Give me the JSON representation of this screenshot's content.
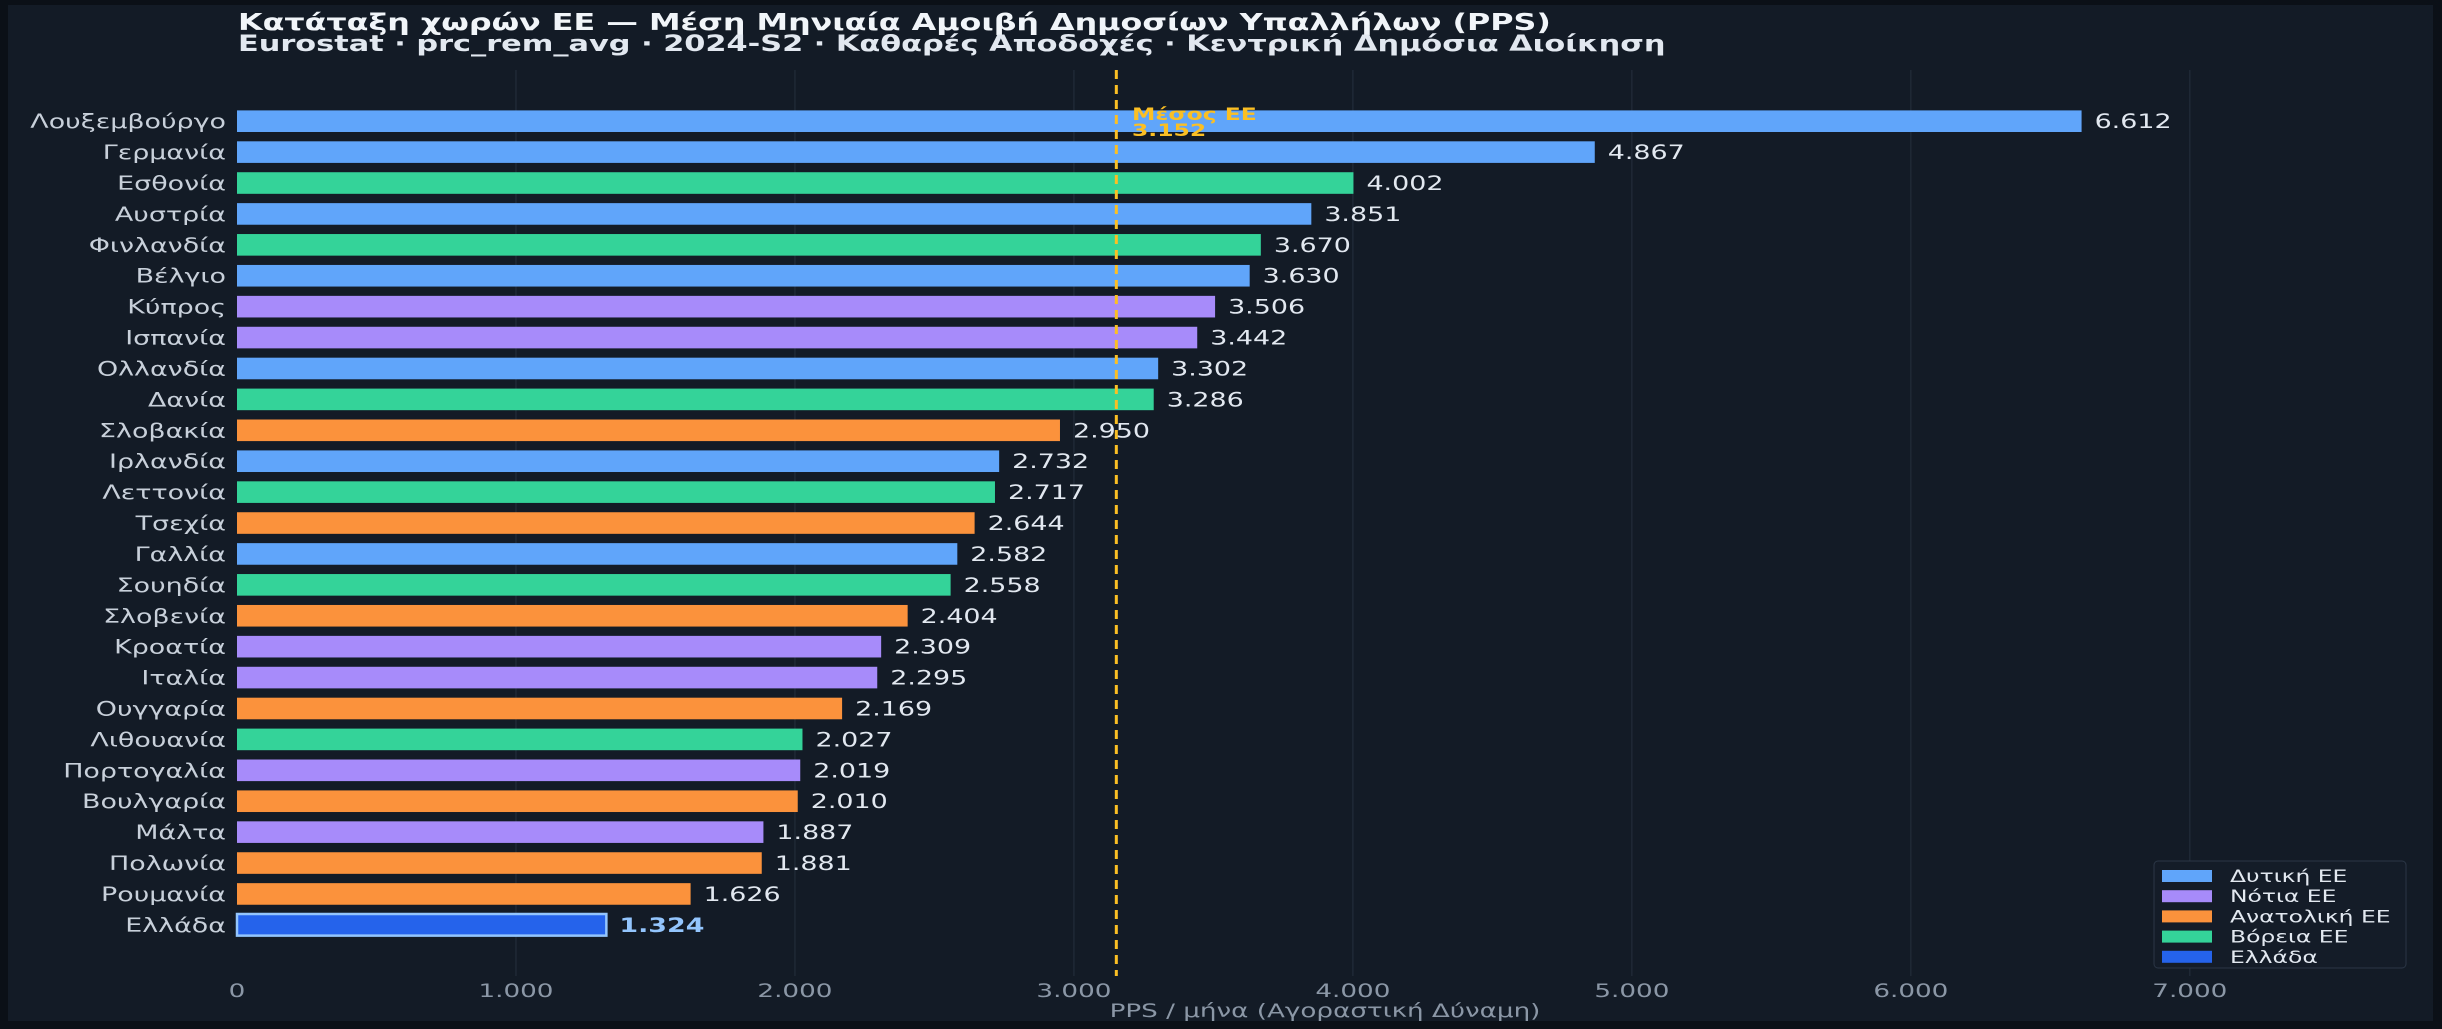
{
  "colors": {
    "page_border": "#0b1017",
    "figure_bg": "#131b26",
    "grid": "#222c3a",
    "legend_bg": "#141c28",
    "legend_edge": "#2b3646"
  },
  "chart_data": {
    "type": "bar",
    "orientation": "horizontal",
    "title": "Κατάταξη χωρών ΕΕ — Μέση Μηνιαία Αμοιβή Δημοσίων Υπαλλήλων (PPS)",
    "subtitle": "Eurostat · prc_rem_avg · 2024-S2 · Καθαρές Αποδοχές · Κεντρική Δημόσια Διοίκηση",
    "xlabel": "PPS / μήνα  (Αγοραστική Δύναμη)",
    "xlim": [
      0,
      7800
    ],
    "grid": "vertical",
    "xticks": [
      {
        "value": 0,
        "label": "0"
      },
      {
        "value": 1000,
        "label": "1.000"
      },
      {
        "value": 2000,
        "label": "2.000"
      },
      {
        "value": 3000,
        "label": "3.000"
      },
      {
        "value": 4000,
        "label": "4.000"
      },
      {
        "value": 5000,
        "label": "5.000"
      },
      {
        "value": 6000,
        "label": "6.000"
      },
      {
        "value": 7000,
        "label": "7.000"
      }
    ],
    "legend": {
      "placement": "lower-right",
      "entries": [
        {
          "name": "Δυτική ΕΕ",
          "color": "#60a5fa"
        },
        {
          "name": "Νότια ΕΕ",
          "color": "#a78bfa"
        },
        {
          "name": "Ανατολική ΕΕ",
          "color": "#fb923c"
        },
        {
          "name": "Βόρεια ΕΕ",
          "color": "#34d399"
        },
        {
          "name": "Ελλάδα",
          "color": "#2563eb"
        }
      ]
    },
    "reference_line": {
      "value": 3152,
      "label": "Μέσος ΕΕ",
      "value_label": "3.152",
      "color": "#fbbf24",
      "style": "dashed"
    },
    "bars": [
      {
        "label": "Λουξεμβούργο",
        "value": 6612,
        "value_label": "6.612",
        "series": 0
      },
      {
        "label": "Γερμανία",
        "value": 4867,
        "value_label": "4.867",
        "series": 0
      },
      {
        "label": "Εσθονία",
        "value": 4002,
        "value_label": "4.002",
        "series": 3
      },
      {
        "label": "Αυστρία",
        "value": 3851,
        "value_label": "3.851",
        "series": 0
      },
      {
        "label": "Φινλανδία",
        "value": 3670,
        "value_label": "3.670",
        "series": 3
      },
      {
        "label": "Βέλγιο",
        "value": 3630,
        "value_label": "3.630",
        "series": 0
      },
      {
        "label": "Κύπρος",
        "value": 3506,
        "value_label": "3.506",
        "series": 1
      },
      {
        "label": "Ισπανία",
        "value": 3442,
        "value_label": "3.442",
        "series": 1
      },
      {
        "label": "Ολλανδία",
        "value": 3302,
        "value_label": "3.302",
        "series": 0
      },
      {
        "label": "Δανία",
        "value": 3286,
        "value_label": "3.286",
        "series": 3
      },
      {
        "label": "Σλοβακία",
        "value": 2950,
        "value_label": "2.950",
        "series": 2
      },
      {
        "label": "Ιρλανδία",
        "value": 2732,
        "value_label": "2.732",
        "series": 0
      },
      {
        "label": "Λεττονία",
        "value": 2717,
        "value_label": "2.717",
        "series": 3
      },
      {
        "label": "Τσεχία",
        "value": 2644,
        "value_label": "2.644",
        "series": 2
      },
      {
        "label": "Γαλλία",
        "value": 2582,
        "value_label": "2.582",
        "series": 0
      },
      {
        "label": "Σουηδία",
        "value": 2558,
        "value_label": "2.558",
        "series": 3
      },
      {
        "label": "Σλοβενία",
        "value": 2404,
        "value_label": "2.404",
        "series": 2
      },
      {
        "label": "Κροατία",
        "value": 2309,
        "value_label": "2.309",
        "series": 1
      },
      {
        "label": "Ιταλία",
        "value": 2295,
        "value_label": "2.295",
        "series": 1
      },
      {
        "label": "Ουγγαρία",
        "value": 2169,
        "value_label": "2.169",
        "series": 2
      },
      {
        "label": "Λιθουανία",
        "value": 2027,
        "value_label": "2.027",
        "series": 3
      },
      {
        "label": "Πορτογαλία",
        "value": 2019,
        "value_label": "2.019",
        "series": 1
      },
      {
        "label": "Βουλγαρία",
        "value": 2010,
        "value_label": "2.010",
        "series": 2
      },
      {
        "label": "Μάλτα",
        "value": 1887,
        "value_label": "1.887",
        "series": 1
      },
      {
        "label": "Πολωνία",
        "value": 1881,
        "value_label": "1.881",
        "series": 2
      },
      {
        "label": "Ρουμανία",
        "value": 1626,
        "value_label": "1.626",
        "series": 2
      },
      {
        "label": "Ελλάδα",
        "value": 1324,
        "value_label": "1.324",
        "series": 4,
        "highlight": true,
        "edge_color": "#93c5fd",
        "label_color": "#93c5fd"
      }
    ]
  }
}
